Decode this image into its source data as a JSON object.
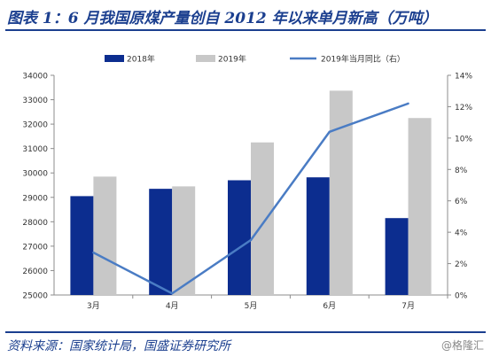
{
  "title": "图表 1：6 月我国原煤产量创自 2012 年以来单月新高（万吨）",
  "source": "资料来源：国家统计局，国盛证券研究所",
  "watermark": "@格隆汇",
  "colors": {
    "title": "#1b3f8f",
    "bar2018": "#0c2d8f",
    "bar2019": "#c8c8c8",
    "line": "#4a7cc4"
  },
  "chart_data": {
    "type": "bar",
    "categories": [
      "3月",
      "4月",
      "5月",
      "6月",
      "7月"
    ],
    "series": [
      {
        "name": "2018年",
        "type": "bar",
        "axis": "left",
        "values": [
          29050,
          29350,
          29700,
          29820,
          28150
        ]
      },
      {
        "name": "2019年",
        "type": "bar",
        "axis": "left",
        "values": [
          29850,
          29450,
          31250,
          33370,
          32250
        ]
      },
      {
        "name": "2019年当月同比（右）",
        "type": "line",
        "axis": "right",
        "values": [
          2.7,
          0.1,
          3.5,
          10.4,
          12.2
        ]
      }
    ],
    "yleft": {
      "lim": [
        25000,
        34000
      ],
      "ticks": [
        25000,
        26000,
        27000,
        28000,
        29000,
        30000,
        31000,
        32000,
        33000,
        34000
      ]
    },
    "yright": {
      "lim": [
        0,
        14
      ],
      "ticks": [
        "0%",
        "2%",
        "4%",
        "6%",
        "8%",
        "10%",
        "12%",
        "14%"
      ]
    },
    "legend_position": "top",
    "grid": false
  }
}
